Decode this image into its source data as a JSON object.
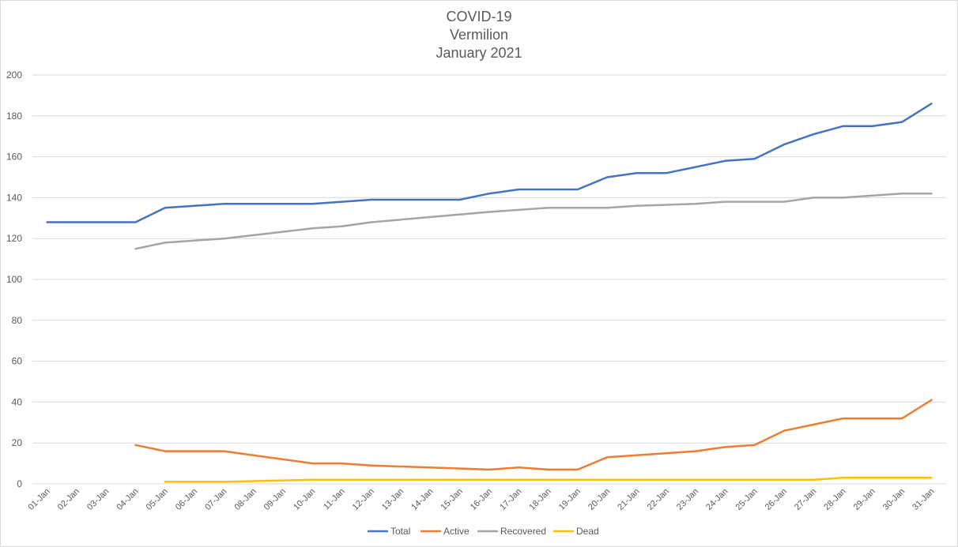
{
  "chart_data": {
    "type": "line",
    "title": [
      "COVID-19",
      "Vermilion",
      "January 2021"
    ],
    "xlabel": "",
    "ylabel": "",
    "ylim": [
      0,
      200
    ],
    "yticks": [
      0,
      20,
      40,
      60,
      80,
      100,
      120,
      140,
      160,
      180,
      200
    ],
    "grid": true,
    "legend": "bottom",
    "categories": [
      "01-Jan",
      "02-Jan",
      "03-Jan",
      "04-Jan",
      "05-Jan",
      "06-Jan",
      "07-Jan",
      "08-Jan",
      "09-Jan",
      "10-Jan",
      "11-Jan",
      "12-Jan",
      "13-Jan",
      "14-Jan",
      "15-Jan",
      "16-Jan",
      "17-Jan",
      "18-Jan",
      "19-Jan",
      "20-Jan",
      "21-Jan",
      "22-Jan",
      "23-Jan",
      "24-Jan",
      "25-Jan",
      "26-Jan",
      "27-Jan",
      "28-Jan",
      "29-Jan",
      "30-Jan",
      "31-Jan"
    ],
    "series": [
      {
        "name": "Total",
        "color": "#4472C4",
        "values": [
          128,
          128,
          128,
          128,
          135,
          136,
          137,
          137,
          137,
          137,
          138,
          139,
          139,
          139,
          139,
          142,
          144,
          144,
          144,
          150,
          152,
          152,
          155,
          158,
          159,
          166,
          171,
          175,
          175,
          177,
          186
        ]
      },
      {
        "name": "Active",
        "color": "#ED7D31",
        "values": [
          null,
          null,
          null,
          19,
          16,
          16,
          16,
          null,
          null,
          10,
          10,
          9,
          null,
          null,
          null,
          7,
          8,
          7,
          7,
          13,
          14,
          null,
          16,
          18,
          19,
          26,
          29,
          32,
          32,
          32,
          41
        ]
      },
      {
        "name": "Recovered",
        "color": "#A5A5A5",
        "values": [
          null,
          null,
          null,
          115,
          118,
          119,
          120,
          null,
          null,
          125,
          126,
          128,
          null,
          null,
          null,
          133,
          134,
          135,
          135,
          135,
          136,
          136.5,
          137,
          138,
          138,
          138,
          140,
          140,
          141,
          142,
          142
        ]
      },
      {
        "name": "Dead",
        "color": "#FFC000",
        "values": [
          null,
          null,
          null,
          null,
          1,
          1,
          1,
          null,
          null,
          2,
          2,
          2,
          2,
          2,
          2,
          2,
          2,
          2,
          2,
          2,
          2,
          2,
          2,
          2,
          2,
          2,
          2,
          3,
          3,
          3,
          3
        ]
      }
    ]
  }
}
